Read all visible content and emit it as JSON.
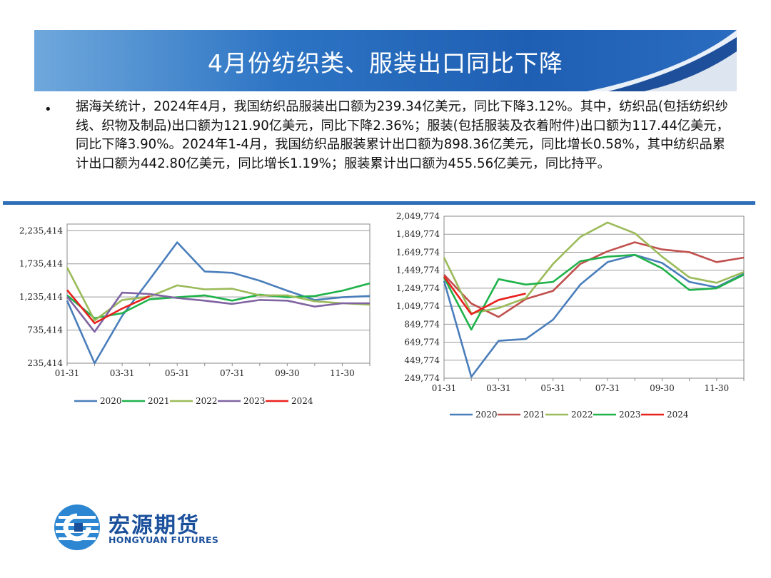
{
  "header": {
    "title": "4月份纺织类、服装出口同比下降"
  },
  "body": {
    "bullet": "•",
    "paragraph": "据海关统计，2024年4月，我国纺织品服装出口额为239.34亿美元，同比下降3.12%。其中，纺织品(包括纺织纱线、织物及制品)出口额为121.90亿美元，同比下降2.36%；服装(包括服装及衣着附件)出口额为117.44亿美元，同比下降3.90%。2024年1-4月，我国纺织品服装累计出口额为898.36亿美元，同比增长0.58%，其中纺织品累计出口额为442.80亿美元，同比增长1.19%；服装累计出口额为455.56亿美元，同比持平。"
  },
  "logo": {
    "name_cn": "宏源期货",
    "name_en": "HONGYUAN FUTURES"
  },
  "chart_data": [
    {
      "type": "line",
      "x": [
        "01-31",
        "02-28",
        "03-31",
        "04-30",
        "05-31",
        "06-30",
        "07-31",
        "08-31",
        "09-30",
        "10-31",
        "11-30",
        "12-31"
      ],
      "xticks": [
        "01-31",
        "03-31",
        "05-31",
        "07-31",
        "09-30",
        "11-30"
      ],
      "yticks": [
        "235,414",
        "735,414",
        "1,235,414",
        "1,735,414",
        "2,235,414"
      ],
      "ylim": [
        235414,
        2335414
      ],
      "grid": true,
      "legend_position": "bottom",
      "series": [
        {
          "name": "2020",
          "color": "#4a7ebb",
          "values": [
            1180000,
            235414,
            950000,
            1500000,
            2060000,
            1620000,
            1600000,
            1480000,
            1330000,
            1190000,
            1230000,
            1250000
          ]
        },
        {
          "name": "2021",
          "color": "#1fb24a",
          "values": [
            1260000,
            915000,
            990000,
            1200000,
            1230000,
            1260000,
            1180000,
            1270000,
            1230000,
            1250000,
            1330000,
            1440000
          ]
        },
        {
          "name": "2022",
          "color": "#9bbb59",
          "values": [
            1680000,
            880000,
            1190000,
            1240000,
            1410000,
            1350000,
            1360000,
            1260000,
            1260000,
            1170000,
            1140000,
            1120000
          ]
        },
        {
          "name": "2023",
          "color": "#8064a2",
          "values": [
            1240000,
            710000,
            1300000,
            1280000,
            1220000,
            1180000,
            1130000,
            1190000,
            1180000,
            1090000,
            1140000,
            1140000
          ]
        },
        {
          "name": "2024",
          "color": "#e8201e",
          "values": [
            1340000,
            840000,
            1060000,
            1250000,
            null,
            null,
            null,
            null,
            null,
            null,
            null,
            null
          ]
        }
      ]
    },
    {
      "type": "line",
      "x": [
        "01-31",
        "02-28",
        "03-31",
        "04-30",
        "05-31",
        "06-30",
        "07-31",
        "08-31",
        "09-30",
        "10-31",
        "11-30",
        "12-31"
      ],
      "xticks": [
        "01-31",
        "03-31",
        "05-31",
        "07-31",
        "09-30",
        "11-30"
      ],
      "yticks": [
        "249,774",
        "449,774",
        "649,774",
        "849,774",
        "1,049,774",
        "1,249,774",
        "1,449,774",
        "1,649,774",
        "1,849,774",
        "2,049,774"
      ],
      "ylim": [
        249774,
        2049774
      ],
      "grid": true,
      "legend_position": "bottom",
      "series": [
        {
          "name": "2020",
          "color": "#4a7ebb",
          "values": [
            1330000,
            265000,
            665000,
            685000,
            900000,
            1290000,
            1540000,
            1620000,
            1530000,
            1320000,
            1260000,
            1410000
          ]
        },
        {
          "name": "2021",
          "color": "#c0504d",
          "values": [
            1400000,
            1080000,
            930000,
            1130000,
            1220000,
            1520000,
            1660000,
            1760000,
            1680000,
            1650000,
            1540000,
            1590000
          ]
        },
        {
          "name": "2022",
          "color": "#9bbb59",
          "values": [
            1590000,
            970000,
            1030000,
            1140000,
            1520000,
            1820000,
            1980000,
            1860000,
            1600000,
            1370000,
            1310000,
            1430000
          ]
        },
        {
          "name": "2023",
          "color": "#1fb24a",
          "values": [
            1370000,
            790000,
            1350000,
            1290000,
            1320000,
            1550000,
            1600000,
            1620000,
            1470000,
            1230000,
            1250000,
            1400000
          ]
        },
        {
          "name": "2024",
          "color": "#e8201e",
          "values": [
            1380000,
            960000,
            1120000,
            1190000,
            null,
            null,
            null,
            null,
            null,
            null,
            null,
            null
          ]
        }
      ]
    }
  ]
}
